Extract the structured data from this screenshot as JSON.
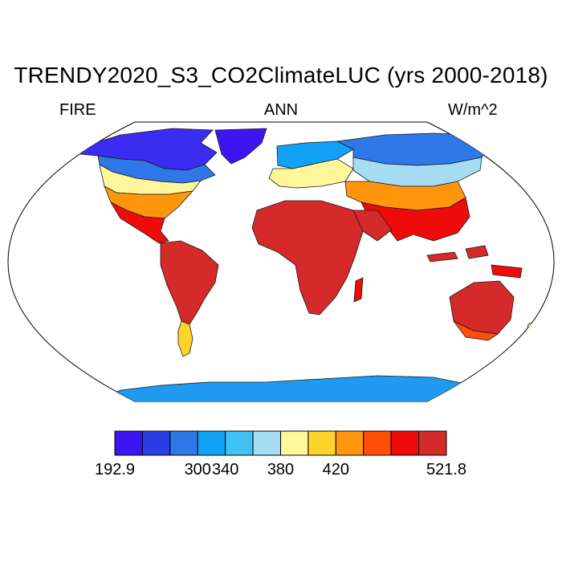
{
  "title": "TRENDY2020_S3_CO2ClimateLUC (yrs 2000-2018)",
  "left_label": "FIRE",
  "center_label": "ANN",
  "right_label": "W/m^2",
  "colorbar": {
    "colors": [
      "#3d15f2",
      "#2a3ee8",
      "#2e78ea",
      "#11a2f8",
      "#40c3f2",
      "#a6dcf2",
      "#fff79a",
      "#ffd42a",
      "#ff960e",
      "#ff4d0a",
      "#f00b0b",
      "#d42a2a"
    ],
    "ticks": [
      {
        "label": "192.9",
        "boundary": 0
      },
      {
        "label": "300",
        "boundary": 3
      },
      {
        "label": "340",
        "boundary": 4
      },
      {
        "label": "380",
        "boundary": 6
      },
      {
        "label": "420",
        "boundary": 8
      },
      {
        "label": "521.8",
        "boundary": 12
      }
    ]
  },
  "map_colors": {
    "ocean": "#ffffff",
    "coast": "#000000",
    "antarctica": "#1e9af0"
  }
}
